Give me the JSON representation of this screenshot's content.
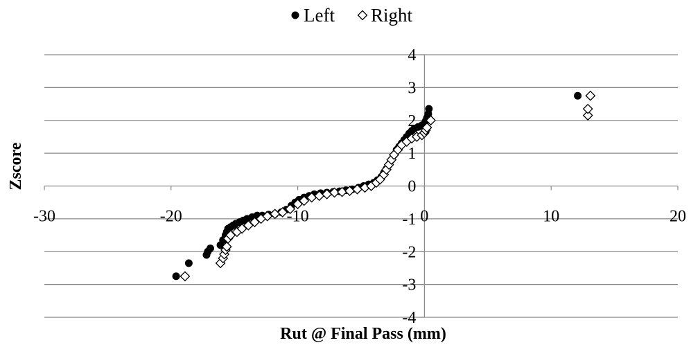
{
  "chart_data": {
    "type": "scatter",
    "title": "",
    "xlabel": "Rut @ Final Pass (mm)",
    "ylabel": "Zscore",
    "xlim": [
      -30,
      20
    ],
    "ylim": [
      -4,
      4
    ],
    "x_ticks": [
      "-30",
      "-20",
      "-10",
      "0",
      "10",
      "20"
    ],
    "y_ticks": [
      "-4",
      "-3",
      "-2",
      "-1",
      "0",
      "1",
      "2",
      "3",
      "4"
    ],
    "grid": "horizontal",
    "legend": "top",
    "series": [
      {
        "name": "Left",
        "marker": "filled-circle",
        "color": "#000000",
        "points": [
          [
            -19.6,
            -2.75
          ],
          [
            -18.6,
            -2.35
          ],
          [
            -17.2,
            -2.1
          ],
          [
            -17.1,
            -2.0
          ],
          [
            -16.9,
            -1.9
          ],
          [
            -16.1,
            -1.8
          ],
          [
            -15.9,
            -1.65
          ],
          [
            -15.7,
            -1.5
          ],
          [
            -15.6,
            -1.4
          ],
          [
            -15.5,
            -1.3
          ],
          [
            -15.3,
            -1.25
          ],
          [
            -15.1,
            -1.2
          ],
          [
            -14.9,
            -1.15
          ],
          [
            -14.6,
            -1.1
          ],
          [
            -14.3,
            -1.05
          ],
          [
            -14.0,
            -1.0
          ],
          [
            -13.6,
            -0.95
          ],
          [
            -13.2,
            -0.9
          ],
          [
            -12.8,
            -0.9
          ],
          [
            -12.3,
            -0.87
          ],
          [
            -11.8,
            -0.85
          ],
          [
            -11.3,
            -0.8
          ],
          [
            -10.9,
            -0.72
          ],
          [
            -10.5,
            -0.6
          ],
          [
            -10.2,
            -0.5
          ],
          [
            -9.9,
            -0.42
          ],
          [
            -9.5,
            -0.35
          ],
          [
            -9.1,
            -0.3
          ],
          [
            -8.7,
            -0.25
          ],
          [
            -8.2,
            -0.22
          ],
          [
            -7.7,
            -0.2
          ],
          [
            -7.2,
            -0.18
          ],
          [
            -6.7,
            -0.16
          ],
          [
            -6.2,
            -0.13
          ],
          [
            -5.7,
            -0.1
          ],
          [
            -5.2,
            -0.05
          ],
          [
            -4.8,
            0.0
          ],
          [
            -4.4,
            0.05
          ],
          [
            -4.0,
            0.1
          ],
          [
            -3.7,
            0.18
          ],
          [
            -3.4,
            0.28
          ],
          [
            -3.2,
            0.4
          ],
          [
            -3.0,
            0.52
          ],
          [
            -2.8,
            0.65
          ],
          [
            -2.6,
            0.8
          ],
          [
            -2.4,
            0.95
          ],
          [
            -2.2,
            1.1
          ],
          [
            -2.0,
            1.2
          ],
          [
            -1.8,
            1.3
          ],
          [
            -1.6,
            1.4
          ],
          [
            -1.4,
            1.5
          ],
          [
            -1.2,
            1.6
          ],
          [
            -1.0,
            1.68
          ],
          [
            -0.8,
            1.75
          ],
          [
            -0.5,
            1.8
          ],
          [
            -0.2,
            1.85
          ],
          [
            0.0,
            1.9
          ],
          [
            0.1,
            1.98
          ],
          [
            0.2,
            2.08
          ],
          [
            0.3,
            2.2
          ],
          [
            0.35,
            2.35
          ],
          [
            12.1,
            2.75
          ]
        ]
      },
      {
        "name": "Right",
        "marker": "open-diamond",
        "color": "#000000",
        "points": [
          [
            -18.9,
            -2.75
          ],
          [
            -16.1,
            -2.35
          ],
          [
            -15.9,
            -2.2
          ],
          [
            -15.8,
            -2.08
          ],
          [
            -15.7,
            -1.95
          ],
          [
            -15.6,
            -1.85
          ],
          [
            -15.5,
            -1.6
          ],
          [
            -15.3,
            -1.5
          ],
          [
            -14.8,
            -1.4
          ],
          [
            -14.4,
            -1.3
          ],
          [
            -13.9,
            -1.2
          ],
          [
            -13.4,
            -1.1
          ],
          [
            -12.9,
            -1.0
          ],
          [
            -12.4,
            -0.92
          ],
          [
            -11.8,
            -0.85
          ],
          [
            -11.2,
            -0.8
          ],
          [
            -10.6,
            -0.7
          ],
          [
            -10.0,
            -0.55
          ],
          [
            -9.5,
            -0.45
          ],
          [
            -8.9,
            -0.35
          ],
          [
            -8.3,
            -0.3
          ],
          [
            -7.7,
            -0.25
          ],
          [
            -7.1,
            -0.2
          ],
          [
            -6.5,
            -0.18
          ],
          [
            -5.9,
            -0.15
          ],
          [
            -5.3,
            -0.1
          ],
          [
            -4.7,
            -0.05
          ],
          [
            -4.2,
            0.0
          ],
          [
            -3.8,
            0.1
          ],
          [
            -3.5,
            0.2
          ],
          [
            -3.2,
            0.35
          ],
          [
            -3.0,
            0.5
          ],
          [
            -2.8,
            0.65
          ],
          [
            -2.6,
            0.8
          ],
          [
            -2.4,
            0.95
          ],
          [
            -2.1,
            1.1
          ],
          [
            -1.8,
            1.25
          ],
          [
            -1.4,
            1.35
          ],
          [
            -1.0,
            1.45
          ],
          [
            -0.6,
            1.5
          ],
          [
            -0.2,
            1.55
          ],
          [
            0.0,
            1.62
          ],
          [
            0.1,
            1.7
          ],
          [
            0.2,
            1.78
          ],
          [
            0.5,
            2.0
          ],
          [
            12.9,
            2.15
          ],
          [
            12.9,
            2.35
          ],
          [
            13.1,
            2.75
          ]
        ]
      }
    ]
  }
}
